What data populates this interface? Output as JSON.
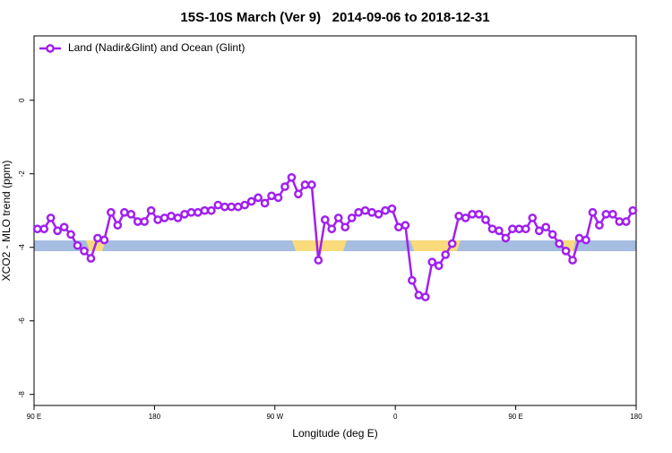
{
  "chart_data": {
    "type": "line",
    "title": "15S-10S March (Ver 9)   2014-09-06 to 2018-12-31",
    "x_label": "Longitude (deg E)",
    "y_label": "XCO2 - MLO trend (ppm)",
    "xlim": [
      90,
      540
    ],
    "xticks": [
      {
        "value": 90,
        "label": "90 E"
      },
      180,
      {
        "value": 270,
        "label": "90 W"
      },
      {
        "value": 360,
        "label": "0"
      },
      {
        "value": 450,
        "label": "90 E"
      },
      {
        "value": 540,
        "label": "180"
      }
    ],
    "ylim": [
      -8.3,
      1.75
    ],
    "yticks": [
      0,
      -2,
      -4,
      -6,
      -8
    ],
    "legend": "top-left",
    "x": [
      92.5,
      97.5,
      102.5,
      107.5,
      112.5,
      117.5,
      122.5,
      127.5,
      132.5,
      137.5,
      142.5,
      147.5,
      152.5,
      157.5,
      162.5,
      167.5,
      172.5,
      177.5,
      182.5,
      187.5,
      192.5,
      197.5,
      202.5,
      207.5,
      212.5,
      217.5,
      222.5,
      227.5,
      232.5,
      237.5,
      242.5,
      247.5,
      252.5,
      257.5,
      262.5,
      267.5,
      272.5,
      277.5,
      282.5,
      287.5,
      292.5,
      297.5,
      302.5,
      307.5,
      312.5,
      317.5,
      322.5,
      327.5,
      332.5,
      337.5,
      342.5,
      347.5,
      352.5,
      357.5,
      362.5,
      367.5,
      372.5,
      377.5,
      382.5,
      387.5,
      392.5,
      397.5,
      402.5,
      407.5,
      412.5,
      417.5,
      422.5,
      427.5,
      432.5,
      437.5,
      442.5,
      447.5,
      452.5,
      457.5,
      462.5,
      467.5,
      472.5,
      477.5,
      482.5,
      487.5,
      492.5,
      497.5,
      502.5,
      507.5,
      512.5,
      517.5,
      522.5,
      527.5,
      532.5,
      537.5
    ],
    "series": [
      {
        "name": "Land (Nadir&Glint) and Ocean (Glint)",
        "color": "#a020f0",
        "values": [
          -3.5,
          -3.5,
          -3.2,
          -3.55,
          -3.45,
          -3.65,
          -3.95,
          -4.1,
          -4.3,
          -3.75,
          -3.8,
          -3.05,
          -3.4,
          -3.05,
          -3.1,
          -3.3,
          -3.3,
          -3.0,
          -3.25,
          -3.2,
          -3.15,
          -3.2,
          -3.1,
          -3.05,
          -3.05,
          -3.0,
          -3.0,
          -2.85,
          -2.9,
          -2.9,
          -2.9,
          -2.85,
          -2.75,
          -2.65,
          -2.8,
          -2.6,
          -2.65,
          -2.35,
          -2.1,
          -2.55,
          -2.3,
          -2.3,
          -4.35,
          -3.25,
          -3.5,
          -3.2,
          -3.45,
          -3.2,
          -3.05,
          -3.0,
          -3.05,
          -3.1,
          -3.0,
          -2.95,
          -3.45,
          -3.4,
          -4.9,
          -5.3,
          -5.35,
          -4.4,
          -4.5,
          -4.2,
          -3.9,
          -3.15,
          -3.2,
          -3.1,
          -3.1,
          -3.25,
          -3.5,
          -3.55,
          -3.75,
          -3.5,
          -3.5,
          -3.5,
          -3.2,
          -3.55,
          -3.45,
          -3.65,
          -3.9,
          -4.1,
          -4.35,
          -3.75,
          -3.8,
          -3.05,
          -3.4,
          -3.1,
          -3.1,
          -3.3,
          -3.3,
          -3.0
        ]
      }
    ]
  }
}
